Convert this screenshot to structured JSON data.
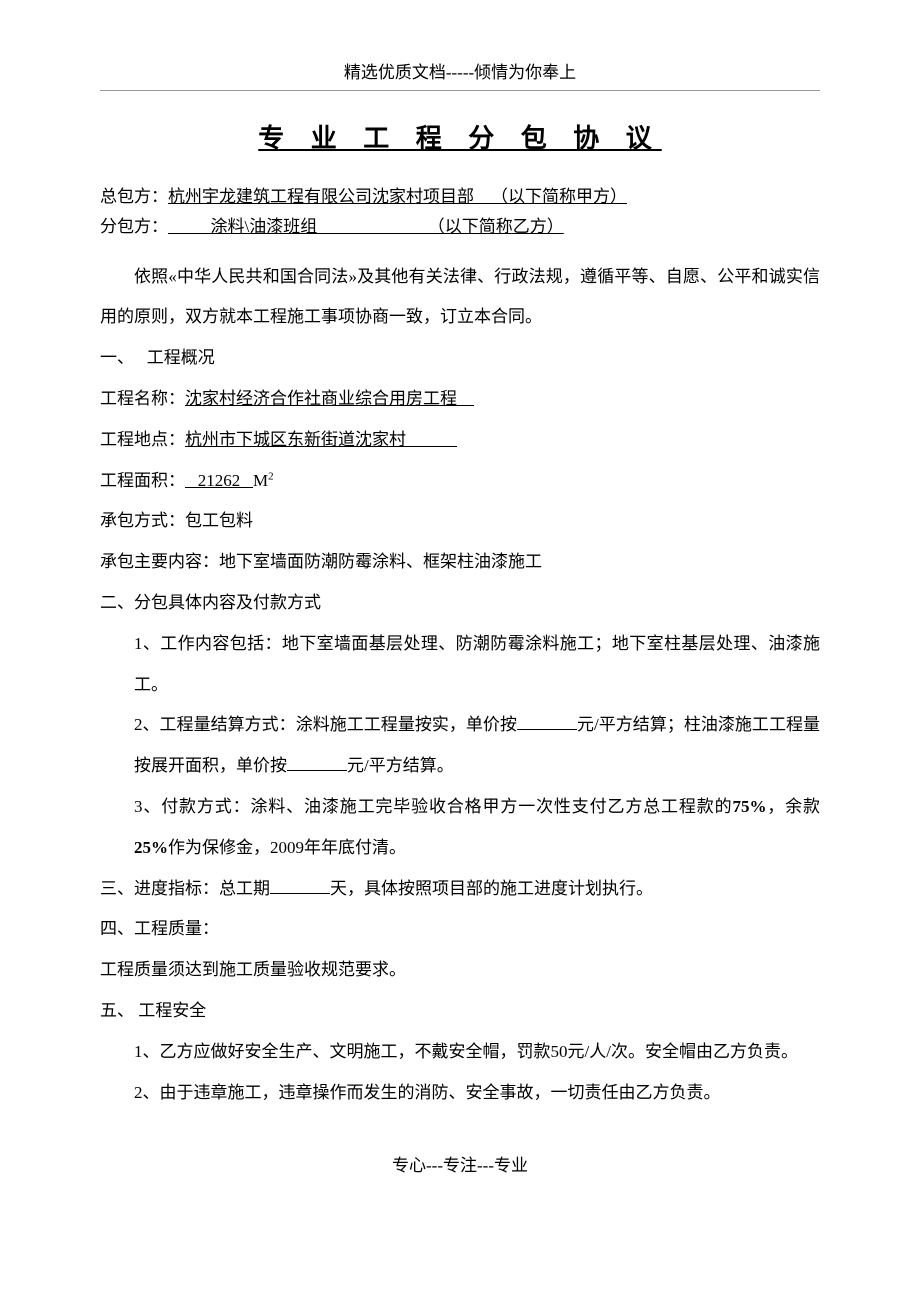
{
  "header": "精选优质文档-----倾情为你奉上",
  "title": "专 业 工 程 分 包 协 议",
  "parties": {
    "general_label": "总包方：",
    "general_value": "杭州宇龙建筑工程有限公司沈家村项目部    （以下简称甲方）",
    "sub_label": "分包方：",
    "sub_value": "          涂料\\油漆班组                          （以下简称乙方）"
  },
  "preamble": "依照«中华人民共和国合同法»及其他有关法律、行政法规，遵循平等、自愿、公平和诚实信用的原则，双方就本工程施工事项协商一致，订立本合同。",
  "section1": {
    "heading": "一、   工程概况",
    "name_label": "工程名称：",
    "name_value": "沈家村经济合作社商业综合用房工程    ",
    "location_label": "工程地点：",
    "location_value": "杭州市下城区东新街道沈家村            ",
    "area_label": "工程面积：",
    "area_value": "   21262   ",
    "area_unit_m": "M",
    "area_unit_sup": "2",
    "method_label": "承包方式：包工包料",
    "content_label": "承包主要内容：地下室墙面防潮防霉涂料、框架柱油漆施工"
  },
  "section2": {
    "heading": "二、分包具体内容及付款方式",
    "item1": "1、工作内容包括：地下室墙面基层处理、防潮防霉涂料施工；地下室柱基层处理、油漆施工。",
    "item2_a": "2、工程量结算方式：涂料施工工程量按实，单价按",
    "item2_b": "元/平方结算；柱油漆施工工程量按展开面积，单价按",
    "item2_c": "元/平方结算。",
    "item3_a": "3、付款方式：涂料、油漆施工完毕验收合格甲方一次性支付乙方总工程款的",
    "item3_b": "75%",
    "item3_c": "，余款",
    "item3_d": "25%",
    "item3_e": "作为保修金，2009年年底付清。"
  },
  "section3": {
    "text_a": "三、进度指标：总工期",
    "text_b": "天，具体按照项目部的施工进度计划执行。"
  },
  "section4": {
    "heading": "四、工程质量：",
    "text": "工程质量须达到施工质量验收规范要求。"
  },
  "section5": {
    "heading": "五、 工程安全",
    "item1": "1、乙方应做好安全生产、文明施工，不戴安全帽，罚款50元/人/次。安全帽由乙方负责。",
    "item2": "2、由于违章施工，违章操作而发生的消防、安全事故，一切责任由乙方负责。"
  },
  "footer": "专心---专注---专业"
}
